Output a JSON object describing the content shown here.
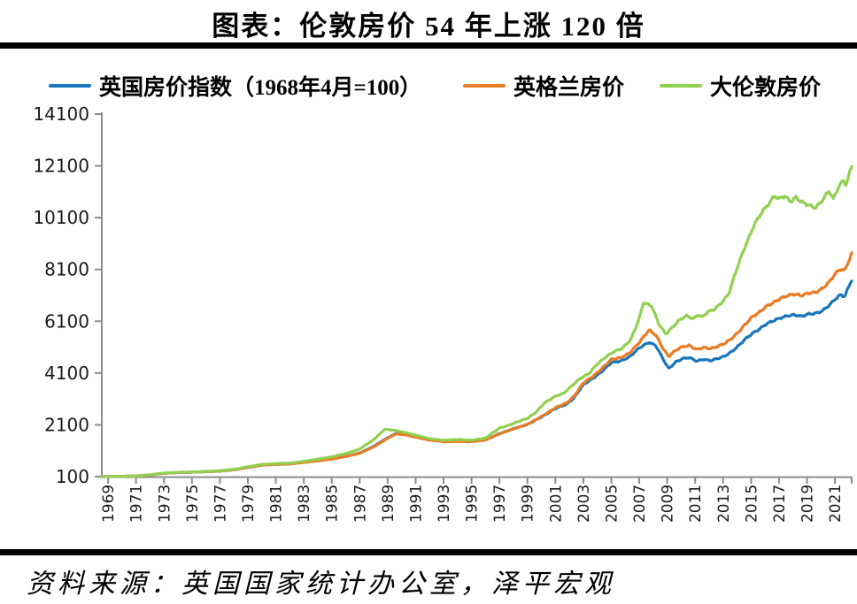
{
  "title": "图表：伦敦房价 54 年上涨 120 倍",
  "source": "资料来源：英国国家统计办公室，泽平宏观",
  "colors": {
    "blue": "#1B76BB",
    "orange": "#E87C25",
    "green": "#92D050",
    "axis": "#8C8C8C",
    "tick_label": "#1A1A1A",
    "rule": "#000000"
  },
  "chart_data": {
    "type": "line",
    "title": "图表：伦敦房价 54 年上涨 120 倍",
    "xlabel": "",
    "ylabel": "",
    "grid": false,
    "legend_position": "top",
    "ylim": [
      100,
      14100
    ],
    "ytick_step": 2000,
    "yticks": [
      100,
      2100,
      4100,
      6100,
      8100,
      10100,
      12100,
      14100
    ],
    "xlim": [
      1968.55,
      2022.2
    ],
    "xticks": [
      1969,
      1971,
      1973,
      1975,
      1977,
      1979,
      1981,
      1983,
      1985,
      1987,
      1989,
      1991,
      1993,
      1995,
      1997,
      1999,
      2001,
      2003,
      2005,
      2007,
      2009,
      2011,
      2013,
      2015,
      2017,
      2019,
      2021
    ],
    "series": [
      {
        "name": "英国房价指数（1968年4月=100）",
        "slug": "uk-index",
        "color": "#1B76BB",
        "points": [
          [
            1968.55,
            100
          ],
          [
            1969,
            104
          ],
          [
            1970,
            112
          ],
          [
            1971,
            126
          ],
          [
            1972,
            165
          ],
          [
            1973,
            230
          ],
          [
            1974,
            258
          ],
          [
            1975,
            272
          ],
          [
            1976,
            292
          ],
          [
            1977,
            313
          ],
          [
            1978,
            365
          ],
          [
            1979,
            455
          ],
          [
            1980,
            545
          ],
          [
            1981,
            572
          ],
          [
            1982,
            592
          ],
          [
            1983,
            652
          ],
          [
            1984,
            712
          ],
          [
            1985,
            782
          ],
          [
            1986,
            882
          ],
          [
            1987,
            1012
          ],
          [
            1988,
            1270
          ],
          [
            1989,
            1600
          ],
          [
            1989.6,
            1770
          ],
          [
            1990.3,
            1730
          ],
          [
            1991,
            1645
          ],
          [
            1992,
            1530
          ],
          [
            1993,
            1465
          ],
          [
            1994,
            1480
          ],
          [
            1995,
            1465
          ],
          [
            1996,
            1530
          ],
          [
            1997,
            1760
          ],
          [
            1998,
            1950
          ],
          [
            1999,
            2115
          ],
          [
            2000,
            2400
          ],
          [
            2001,
            2730
          ],
          [
            2001.8,
            2900
          ],
          [
            2002.3,
            3120
          ],
          [
            2003,
            3650
          ],
          [
            2003.7,
            3900
          ],
          [
            2004.3,
            4150
          ],
          [
            2005,
            4500
          ],
          [
            2005.7,
            4570
          ],
          [
            2006.3,
            4720
          ],
          [
            2007,
            5070
          ],
          [
            2007.7,
            5290
          ],
          [
            2008.2,
            5150
          ],
          [
            2008.7,
            4650
          ],
          [
            2009.1,
            4265
          ],
          [
            2009.6,
            4520
          ],
          [
            2010.1,
            4660
          ],
          [
            2010.6,
            4700
          ],
          [
            2011.1,
            4560
          ],
          [
            2011.6,
            4630
          ],
          [
            2012.1,
            4580
          ],
          [
            2012.6,
            4660
          ],
          [
            2013.1,
            4750
          ],
          [
            2013.6,
            4920
          ],
          [
            2014.1,
            5150
          ],
          [
            2014.6,
            5420
          ],
          [
            2015.1,
            5630
          ],
          [
            2015.6,
            5800
          ],
          [
            2016.1,
            6000
          ],
          [
            2016.6,
            6120
          ],
          [
            2017.1,
            6230
          ],
          [
            2017.6,
            6310
          ],
          [
            2018.1,
            6350
          ],
          [
            2018.6,
            6290
          ],
          [
            2019.1,
            6380
          ],
          [
            2019.6,
            6400
          ],
          [
            2020.1,
            6500
          ],
          [
            2020.6,
            6720
          ],
          [
            2021,
            6950
          ],
          [
            2021.4,
            7120
          ],
          [
            2021.7,
            7060
          ],
          [
            2022.2,
            7700
          ]
        ]
      },
      {
        "name": "英格兰房价",
        "slug": "england",
        "color": "#E87C25",
        "points": [
          [
            1968.55,
            100
          ],
          [
            1969,
            104
          ],
          [
            1970,
            112
          ],
          [
            1971,
            126
          ],
          [
            1972,
            165
          ],
          [
            1973,
            230
          ],
          [
            1974,
            258
          ],
          [
            1975,
            272
          ],
          [
            1976,
            292
          ],
          [
            1977,
            313
          ],
          [
            1978,
            365
          ],
          [
            1979,
            455
          ],
          [
            1980,
            545
          ],
          [
            1981,
            572
          ],
          [
            1982,
            592
          ],
          [
            1983,
            652
          ],
          [
            1984,
            710
          ],
          [
            1985,
            778
          ],
          [
            1986,
            876
          ],
          [
            1987,
            1000
          ],
          [
            1988,
            1250
          ],
          [
            1989,
            1580
          ],
          [
            1989.6,
            1750
          ],
          [
            1990.3,
            1712
          ],
          [
            1991,
            1628
          ],
          [
            1992,
            1512
          ],
          [
            1993,
            1448
          ],
          [
            1994,
            1462
          ],
          [
            1995,
            1448
          ],
          [
            1996,
            1515
          ],
          [
            1997,
            1752
          ],
          [
            1998,
            1945
          ],
          [
            1999,
            2120
          ],
          [
            2000,
            2420
          ],
          [
            2001,
            2760
          ],
          [
            2001.8,
            2950
          ],
          [
            2002.3,
            3180
          ],
          [
            2003,
            3720
          ],
          [
            2003.7,
            3980
          ],
          [
            2004.3,
            4260
          ],
          [
            2005,
            4630
          ],
          [
            2005.7,
            4700
          ],
          [
            2006.3,
            4870
          ],
          [
            2007,
            5280
          ],
          [
            2007.7,
            5765
          ],
          [
            2008.2,
            5560
          ],
          [
            2008.7,
            5050
          ],
          [
            2009.1,
            4740
          ],
          [
            2009.6,
            4980
          ],
          [
            2010.1,
            5120
          ],
          [
            2010.6,
            5160
          ],
          [
            2011.1,
            5010
          ],
          [
            2011.6,
            5090
          ],
          [
            2012.1,
            5040
          ],
          [
            2012.6,
            5130
          ],
          [
            2013.1,
            5240
          ],
          [
            2013.6,
            5430
          ],
          [
            2014.1,
            5680
          ],
          [
            2014.6,
            5990
          ],
          [
            2015.1,
            6280
          ],
          [
            2015.6,
            6450
          ],
          [
            2016.1,
            6680
          ],
          [
            2016.6,
            6820
          ],
          [
            2017.1,
            6980
          ],
          [
            2017.6,
            7090
          ],
          [
            2018.1,
            7150
          ],
          [
            2018.6,
            7090
          ],
          [
            2019.1,
            7190
          ],
          [
            2019.6,
            7210
          ],
          [
            2020.1,
            7360
          ],
          [
            2020.6,
            7620
          ],
          [
            2021,
            7920
          ],
          [
            2021.4,
            8120
          ],
          [
            2021.7,
            8060
          ],
          [
            2022.2,
            8700
          ]
        ]
      },
      {
        "name": "大伦敦房价",
        "slug": "greater-london",
        "color": "#92D050",
        "points": [
          [
            1968.55,
            100
          ],
          [
            1969,
            104
          ],
          [
            1970,
            113
          ],
          [
            1971,
            129
          ],
          [
            1972,
            172
          ],
          [
            1973,
            242
          ],
          [
            1974,
            268
          ],
          [
            1975,
            283
          ],
          [
            1976,
            303
          ],
          [
            1977,
            328
          ],
          [
            1978,
            385
          ],
          [
            1979,
            485
          ],
          [
            1980,
            575
          ],
          [
            1981,
            605
          ],
          [
            1982,
            625
          ],
          [
            1983,
            695
          ],
          [
            1984,
            775
          ],
          [
            1985,
            865
          ],
          [
            1986,
            995
          ],
          [
            1987,
            1165
          ],
          [
            1988,
            1530
          ],
          [
            1988.8,
            1930
          ],
          [
            1989.5,
            1890
          ],
          [
            1990.2,
            1810
          ],
          [
            1991,
            1705
          ],
          [
            1992,
            1565
          ],
          [
            1993,
            1505
          ],
          [
            1994,
            1535
          ],
          [
            1995,
            1505
          ],
          [
            1996,
            1590
          ],
          [
            1997,
            1975
          ],
          [
            1997.6,
            2070
          ],
          [
            1998.2,
            2200
          ],
          [
            1999,
            2350
          ],
          [
            1999.6,
            2580
          ],
          [
            2000.2,
            2940
          ],
          [
            2001,
            3205
          ],
          [
            2001.6,
            3320
          ],
          [
            2002.2,
            3620
          ],
          [
            2002.8,
            3900
          ],
          [
            2003.4,
            4080
          ],
          [
            2004,
            4450
          ],
          [
            2004.6,
            4720
          ],
          [
            2005.2,
            4930
          ],
          [
            2005.8,
            5060
          ],
          [
            2006.4,
            5400
          ],
          [
            2007,
            6200
          ],
          [
            2007.3,
            6825
          ],
          [
            2007.9,
            6680
          ],
          [
            2008.4,
            6000
          ],
          [
            2008.9,
            5600
          ],
          [
            2009.4,
            5880
          ],
          [
            2009.9,
            6160
          ],
          [
            2010.4,
            6310
          ],
          [
            2010.9,
            6190
          ],
          [
            2011.2,
            6360
          ],
          [
            2011.5,
            6260
          ],
          [
            2011.9,
            6460
          ],
          [
            2012.4,
            6570
          ],
          [
            2012.9,
            6820
          ],
          [
            2013.4,
            7150
          ],
          [
            2013.9,
            8000
          ],
          [
            2014.4,
            8750
          ],
          [
            2014.9,
            9400
          ],
          [
            2015.2,
            9800
          ],
          [
            2015.7,
            10250
          ],
          [
            2016.2,
            10600
          ],
          [
            2016.7,
            10950
          ],
          [
            2017,
            10820
          ],
          [
            2017.4,
            10950
          ],
          [
            2017.8,
            10720
          ],
          [
            2018.2,
            10880
          ],
          [
            2018.7,
            10680
          ],
          [
            2019.1,
            10600
          ],
          [
            2019.5,
            10480
          ],
          [
            2019.9,
            10620
          ],
          [
            2020.3,
            10950
          ],
          [
            2020.6,
            11120
          ],
          [
            2020.9,
            10820
          ],
          [
            2021.3,
            11350
          ],
          [
            2021.6,
            11520
          ],
          [
            2021.8,
            11380
          ],
          [
            2022.2,
            12080
          ]
        ]
      }
    ]
  }
}
